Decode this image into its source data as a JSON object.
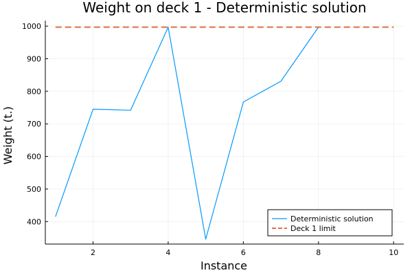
{
  "chart_data": {
    "type": "line",
    "title": "Weight on deck 1 - Deterministic solution",
    "xlabel": "Instance",
    "ylabel": "Weight (t.)",
    "xlim": [
      0.73,
      10.27
    ],
    "ylim": [
      331,
      1017
    ],
    "xticks": [
      2,
      4,
      6,
      8,
      10
    ],
    "yticks": [
      400,
      500,
      600,
      700,
      800,
      900,
      1000
    ],
    "grid": true,
    "legend_position": "bottom-right",
    "series": [
      {
        "name": "Deterministic solution",
        "color": "#009af9",
        "style": "solid",
        "x": [
          1,
          2,
          3,
          4,
          5,
          6,
          7,
          8
        ],
        "y": [
          415,
          745,
          742,
          997,
          346,
          767,
          831,
          997
        ]
      },
      {
        "name": "Deck 1 limit",
        "color": "#e26f46",
        "style": "dashed",
        "x": [
          1,
          10
        ],
        "y": [
          997,
          997
        ]
      }
    ]
  }
}
